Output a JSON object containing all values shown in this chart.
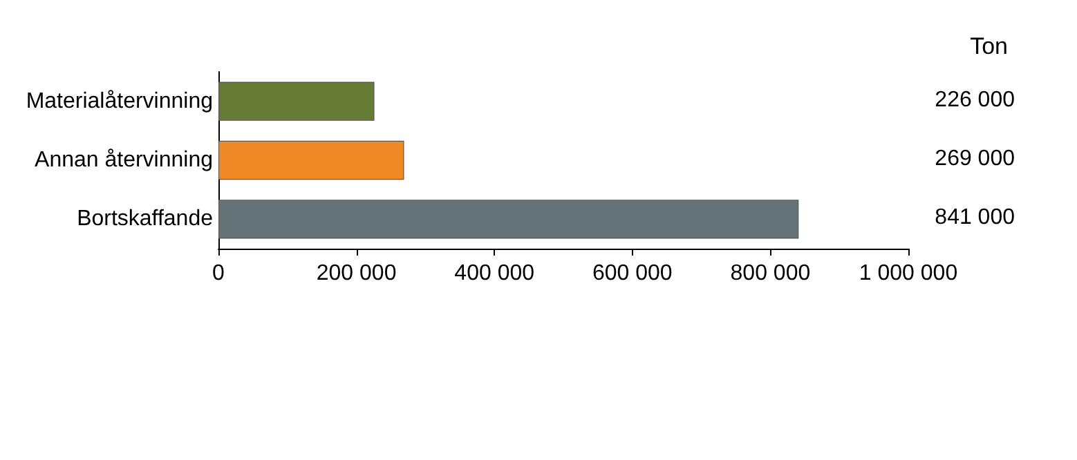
{
  "chart_data": {
    "type": "bar",
    "orientation": "horizontal",
    "title": "Ton",
    "categories": [
      "Materialåtervinning",
      "Annan återvinning",
      "Bortskaffande"
    ],
    "values": [
      226000,
      269000,
      841000
    ],
    "colors": [
      "#667c35",
      "#f08a24",
      "#657476"
    ],
    "value_labels": [
      "226 000",
      "269 000",
      "841 000"
    ],
    "xlim": [
      0,
      1000000
    ],
    "xticks": [
      {
        "value": 0,
        "label": "0"
      },
      {
        "value": 200000,
        "label": "200 000"
      },
      {
        "value": 400000,
        "label": "400 000"
      },
      {
        "value": 600000,
        "label": "600 000"
      },
      {
        "value": 800000,
        "label": "800 000"
      },
      {
        "value": 1000000,
        "label": "1 000 000"
      }
    ],
    "data_labels": false
  }
}
